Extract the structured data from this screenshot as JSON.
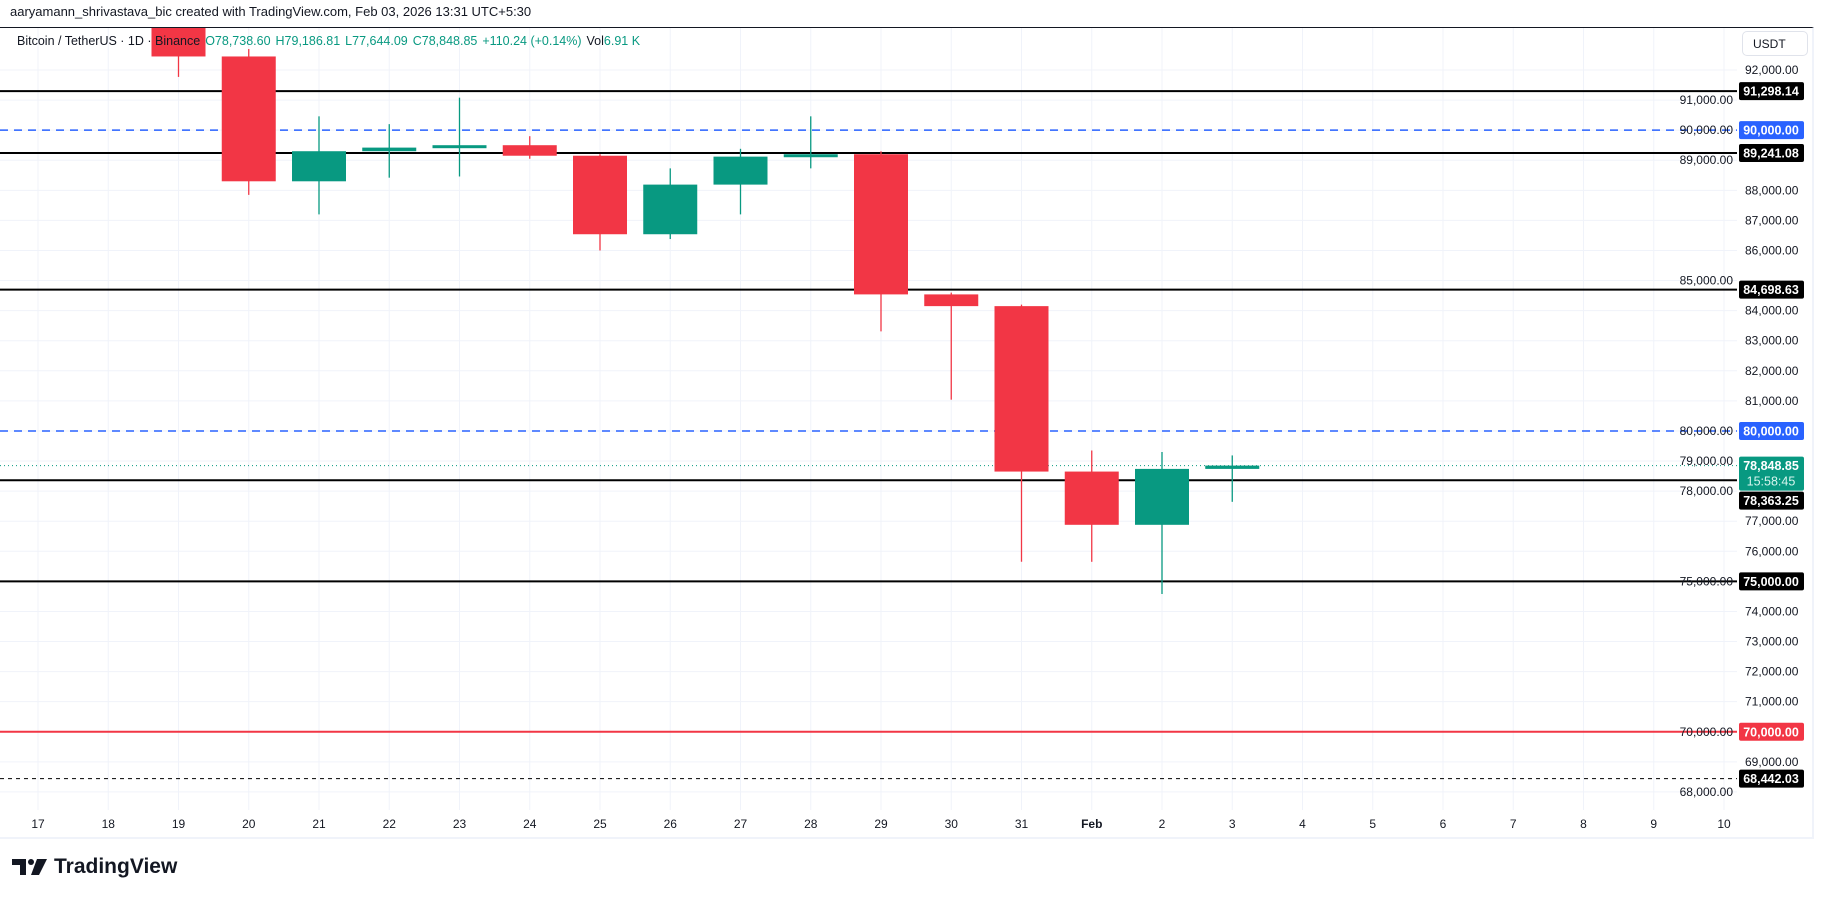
{
  "credit": "aaryamann_shrivastava_bic created with TradingView.com, Feb 03, 2026 13:31 UTC+5:30",
  "legend": {
    "symbol": "Bitcoin / TetherUS · 1D · Binance",
    "open": "O78,738.60",
    "high": "H79,186.81",
    "low": "L77,644.09",
    "close": "C78,848.85",
    "change": "+110.24 (+0.14%)",
    "vol_label": "Vol",
    "vol_value": "6.91 K"
  },
  "unit_button": "USDT",
  "countdown": "15:58:45",
  "brand": "TradingView",
  "colors": {
    "up": "#089981",
    "down": "#f23645",
    "blue": "#2962ff",
    "red": "#f23645",
    "black": "#000000",
    "grid": "#f0f3fa"
  },
  "chart_data": {
    "type": "candlestick",
    "x_tick_labels": [
      "17",
      "18",
      "19",
      "20",
      "21",
      "22",
      "23",
      "24",
      "25",
      "26",
      "27",
      "28",
      "29",
      "30",
      "31",
      "Feb",
      "2",
      "3",
      "4",
      "5",
      "6",
      "7",
      "8",
      "9",
      "10"
    ],
    "y_ticks": [
      68000,
      69000,
      70000,
      71000,
      72000,
      73000,
      74000,
      75000,
      76000,
      77000,
      78000,
      79000,
      80000,
      81000,
      82000,
      83000,
      84000,
      85000,
      86000,
      87000,
      88000,
      89000,
      90000,
      91000,
      92000
    ],
    "ylim": [
      67300,
      93200
    ],
    "grid": true,
    "candles": [
      {
        "date": "Jan 19",
        "open": 93500,
        "high": 93900,
        "low": 91770,
        "close": 92450
      },
      {
        "date": "Jan 20",
        "open": 92450,
        "high": 92700,
        "low": 87850,
        "close": 88300
      },
      {
        "date": "Jan 21",
        "open": 88300,
        "high": 90460,
        "low": 87200,
        "close": 89300
      },
      {
        "date": "Jan 22",
        "open": 89300,
        "high": 90200,
        "low": 88420,
        "close": 89420
      },
      {
        "date": "Jan 23",
        "open": 89420,
        "high": 91080,
        "low": 88460,
        "close": 89500
      },
      {
        "date": "Jan 24",
        "open": 89500,
        "high": 89800,
        "low": 89050,
        "close": 89150
      },
      {
        "date": "Jan 25",
        "open": 89150,
        "high": 89200,
        "low": 86000,
        "close": 86540
      },
      {
        "date": "Jan 26",
        "open": 86540,
        "high": 88730,
        "low": 86380,
        "close": 88190
      },
      {
        "date": "Jan 27",
        "open": 88190,
        "high": 89380,
        "low": 87200,
        "close": 89120
      },
      {
        "date": "Jan 28",
        "open": 89120,
        "high": 90460,
        "low": 88730,
        "close": 89200
      },
      {
        "date": "Jan 29",
        "open": 89200,
        "high": 89300,
        "low": 83310,
        "close": 84540
      },
      {
        "date": "Jan 30",
        "open": 84540,
        "high": 84600,
        "low": 81040,
        "close": 84150
      },
      {
        "date": "Jan 31",
        "open": 84150,
        "high": 84200,
        "low": 75650,
        "close": 78650
      },
      {
        "date": "Feb 1",
        "open": 78650,
        "high": 79350,
        "low": 75650,
        "close": 76880
      },
      {
        "date": "Feb 2",
        "open": 76880,
        "high": 79300,
        "low": 74580,
        "close": 78738.6
      },
      {
        "date": "Feb 3",
        "open": 78738.6,
        "high": 79186.81,
        "low": 77644.09,
        "close": 78848.85
      }
    ],
    "horizontal_lines": [
      {
        "price": 91298.14,
        "label": "91,298.14",
        "color": "#000000",
        "style": "solid"
      },
      {
        "price": 90000,
        "label": "90,000.00",
        "color": "#2962ff",
        "style": "dashed"
      },
      {
        "price": 89241.08,
        "label": "89,241.08",
        "color": "#000000",
        "style": "solid"
      },
      {
        "price": 84698.63,
        "label": "84,698.63",
        "color": "#000000",
        "style": "solid"
      },
      {
        "price": 80000,
        "label": "80,000.00",
        "color": "#2962ff",
        "style": "dashed"
      },
      {
        "price": 78363.25,
        "label": "78,363.25",
        "color": "#000000",
        "style": "solid"
      },
      {
        "price": 75000,
        "label": "75,000.00",
        "color": "#000000",
        "style": "solid"
      },
      {
        "price": 70000,
        "label": "70,000.00",
        "color": "#f23645",
        "style": "solid"
      },
      {
        "price": 68442.03,
        "label": "68,442.03",
        "color": "#000000",
        "style": "dashed"
      }
    ],
    "last_price": {
      "price": 78848.85,
      "label": "78,848.85",
      "color": "#089981"
    }
  }
}
